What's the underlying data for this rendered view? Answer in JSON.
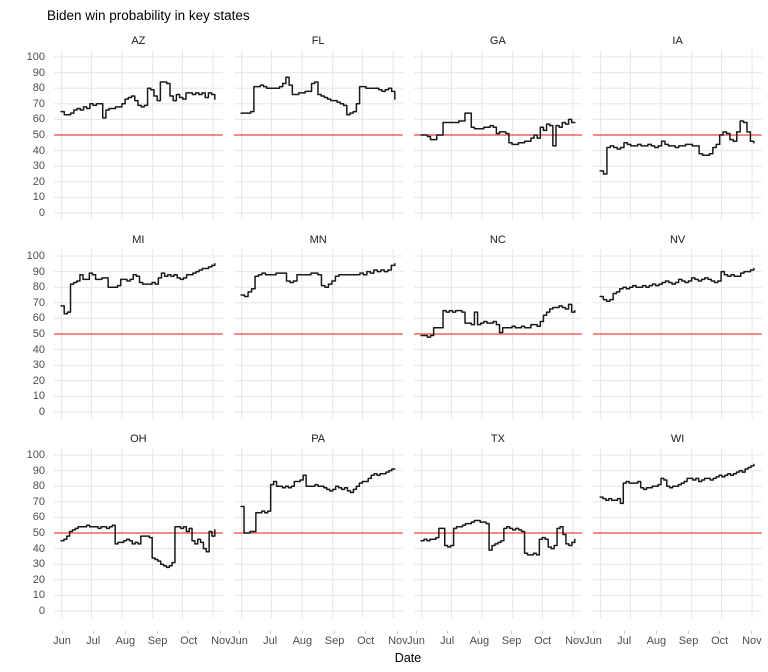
{
  "chart_data": {
    "type": "line",
    "title": "Biden win probability in key states",
    "xlabel": "Date",
    "ylabel": "",
    "ylim": [
      0,
      100
    ],
    "grid": true,
    "legend": false,
    "x_ticks": [
      "Jun",
      "Jul",
      "Aug",
      "Sep",
      "Oct",
      "Nov"
    ],
    "y_ticks": [
      100,
      90,
      80,
      70,
      60,
      50,
      40,
      30,
      20,
      10,
      0
    ],
    "reference_line_y": 50,
    "facet_rows": [
      [
        "AZ",
        "FL",
        "GA",
        "IA"
      ],
      [
        "MI",
        "MN",
        "NC",
        "NV"
      ],
      [
        "OH",
        "PA",
        "TX",
        "WI"
      ]
    ],
    "facets": [
      {
        "state": "AZ",
        "values": [
          65,
          63,
          63,
          64,
          66,
          67,
          66,
          68,
          67,
          70,
          69,
          70,
          70,
          61,
          66,
          67,
          67,
          68,
          68,
          70,
          73,
          74,
          75,
          72,
          69,
          68,
          69,
          80,
          79,
          75,
          72,
          84,
          84,
          83,
          75,
          72,
          76,
          74,
          73,
          77,
          77,
          76,
          77,
          76,
          77,
          74,
          77,
          76,
          73
        ]
      },
      {
        "state": "FL",
        "values": [
          64,
          64,
          64,
          65,
          81,
          81,
          82,
          81,
          80,
          80,
          80,
          80,
          81,
          83,
          87,
          82,
          76,
          76,
          77,
          77,
          78,
          78,
          83,
          84,
          76,
          75,
          74,
          73,
          72,
          72,
          71,
          70,
          69,
          63,
          64,
          65,
          70,
          81,
          81,
          80,
          80,
          80,
          80,
          79,
          78,
          79,
          80,
          78,
          73
        ]
      },
      {
        "state": "GA",
        "values": [
          50,
          50,
          49,
          47,
          47,
          50,
          50,
          58,
          58,
          58,
          58,
          58,
          59,
          59,
          64,
          64,
          55,
          54,
          54,
          54,
          55,
          55,
          56,
          55,
          51,
          52,
          52,
          51,
          45,
          44,
          44,
          45,
          45,
          46,
          46,
          48,
          50,
          48,
          55,
          53,
          57,
          56,
          43,
          56,
          55,
          58,
          57,
          60,
          58,
          58
        ]
      },
      {
        "state": "IA",
        "values": [
          27,
          25,
          42,
          43,
          42,
          41,
          42,
          45,
          44,
          43,
          43,
          44,
          43,
          43,
          44,
          43,
          42,
          43,
          46,
          44,
          43,
          43,
          42,
          43,
          43,
          44,
          44,
          43,
          43,
          38,
          37,
          37,
          38,
          42,
          44,
          50,
          52,
          51,
          47,
          46,
          52,
          59,
          58,
          52,
          46,
          45
        ]
      },
      {
        "state": "MI",
        "values": [
          68,
          63,
          64,
          82,
          83,
          84,
          88,
          85,
          85,
          89,
          88,
          85,
          85,
          86,
          86,
          80,
          80,
          80,
          81,
          85,
          85,
          84,
          85,
          88,
          87,
          83,
          82,
          82,
          82,
          83,
          82,
          86,
          89,
          87,
          88,
          87,
          88,
          86,
          85,
          86,
          88,
          88,
          89,
          90,
          91,
          92,
          92,
          93,
          94,
          95
        ]
      },
      {
        "state": "MN",
        "values": [
          75,
          74,
          77,
          79,
          87,
          88,
          89,
          88,
          88,
          88,
          89,
          89,
          89,
          84,
          83,
          84,
          88,
          88,
          88,
          88,
          89,
          89,
          88,
          81,
          80,
          82,
          84,
          87,
          88,
          88,
          88,
          88,
          88,
          88,
          89,
          88,
          90,
          89,
          91,
          90,
          91,
          90,
          91,
          94,
          95
        ]
      },
      {
        "state": "NC",
        "values": [
          49,
          49,
          48,
          49,
          54,
          54,
          54,
          65,
          64,
          65,
          64,
          65,
          65,
          64,
          57,
          57,
          56,
          64,
          56,
          57,
          58,
          57,
          57,
          58,
          56,
          51,
          54,
          54,
          54,
          55,
          54,
          54,
          55,
          54,
          54,
          56,
          56,
          55,
          58,
          62,
          64,
          66,
          67,
          67,
          68,
          67,
          66,
          69,
          64,
          65
        ]
      },
      {
        "state": "NV",
        "values": [
          74,
          72,
          71,
          72,
          76,
          77,
          79,
          80,
          79,
          80,
          81,
          80,
          80,
          81,
          80,
          81,
          82,
          81,
          82,
          83,
          84,
          83,
          82,
          83,
          85,
          84,
          83,
          84,
          86,
          85,
          84,
          85,
          86,
          85,
          84,
          83,
          84,
          90,
          88,
          87,
          88,
          87,
          87,
          89,
          90,
          90,
          91,
          92
        ]
      },
      {
        "state": "OH",
        "values": [
          45,
          46,
          48,
          51,
          52,
          53,
          54,
          54,
          54,
          55,
          54,
          54,
          54,
          53,
          54,
          54,
          53,
          54,
          55,
          43,
          44,
          44,
          45,
          46,
          45,
          43,
          44,
          43,
          48,
          48,
          48,
          47,
          34,
          33,
          32,
          30,
          29,
          28,
          29,
          31,
          54,
          54,
          53,
          54,
          51,
          53,
          45,
          43,
          46,
          44,
          40,
          38,
          51,
          48,
          52
        ]
      },
      {
        "state": "PA",
        "values": [
          67,
          50,
          50,
          51,
          51,
          63,
          63,
          64,
          63,
          64,
          81,
          83,
          80,
          80,
          79,
          80,
          79,
          80,
          83,
          83,
          84,
          87,
          80,
          80,
          80,
          81,
          80,
          80,
          79,
          78,
          77,
          78,
          80,
          79,
          78,
          79,
          77,
          76,
          78,
          80,
          82,
          83,
          83,
          85,
          87,
          88,
          87,
          88,
          88,
          89,
          90,
          91,
          91
        ]
      },
      {
        "state": "TX",
        "values": [
          45,
          46,
          45,
          46,
          46,
          47,
          53,
          53,
          42,
          41,
          42,
          53,
          54,
          54,
          55,
          56,
          56,
          57,
          58,
          58,
          57,
          57,
          56,
          39,
          42,
          43,
          44,
          45,
          53,
          54,
          53,
          52,
          53,
          52,
          51,
          37,
          36,
          36,
          37,
          36,
          46,
          47,
          46,
          41,
          40,
          42,
          53,
          54,
          49,
          43,
          42,
          44,
          46
        ]
      },
      {
        "state": "WI",
        "values": [
          73,
          72,
          71,
          72,
          71,
          71,
          72,
          69,
          82,
          83,
          82,
          82,
          82,
          83,
          79,
          78,
          79,
          79,
          80,
          80,
          81,
          85,
          84,
          80,
          79,
          80,
          80,
          81,
          82,
          83,
          85,
          85,
          84,
          85,
          83,
          84,
          85,
          85,
          84,
          85,
          86,
          87,
          86,
          87,
          88,
          87,
          88,
          89,
          90,
          89,
          91,
          92,
          93,
          94
        ]
      }
    ],
    "colors": {
      "line": "#1a1a1a",
      "reference": "#ee4540",
      "grid": "#e5e5e5",
      "tick_mark": "#c9c9c9",
      "axis_text": "#4d4d4d",
      "title_text": "#000000",
      "background": "#ffffff"
    }
  }
}
